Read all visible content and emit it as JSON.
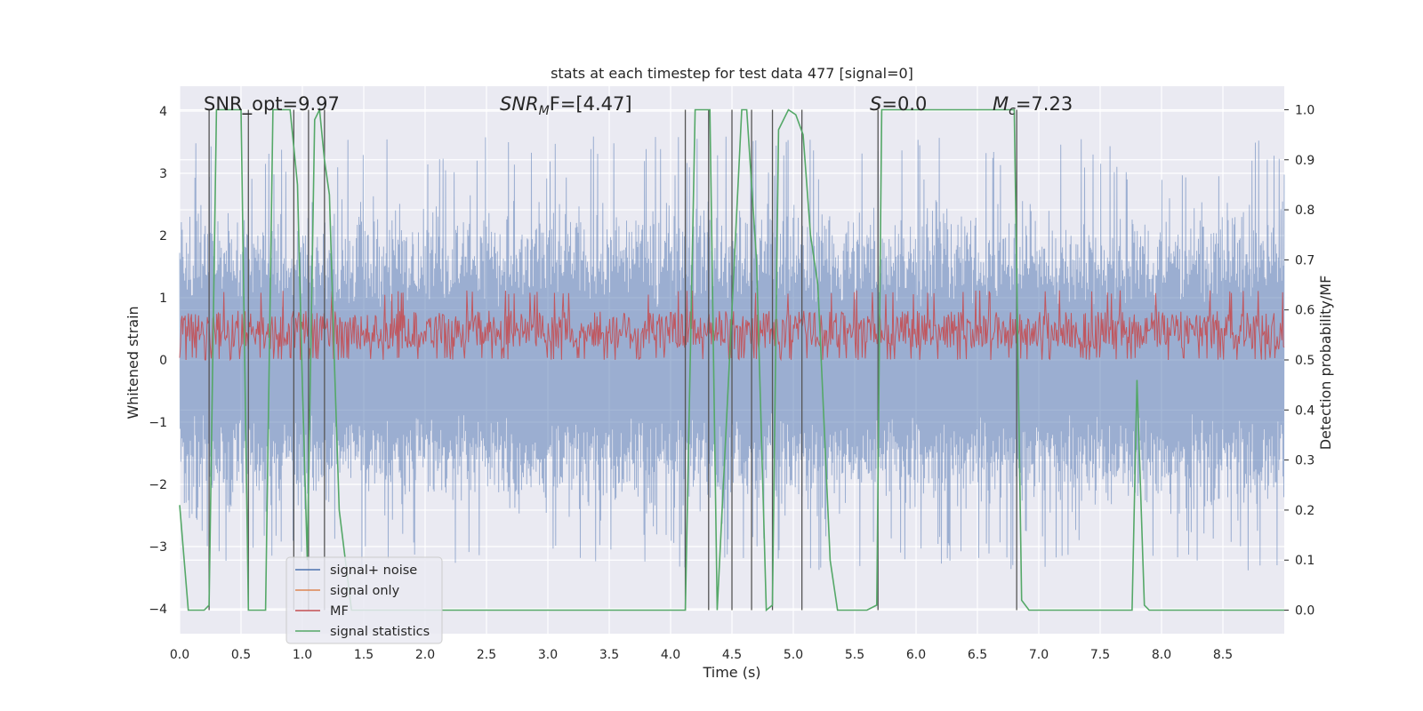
{
  "chart_data": {
    "type": "line",
    "title": "stats at each timestep for test data 477 [signal=0]",
    "xlabel": "Time (s)",
    "ylabel": "Whitened strain",
    "ylabel_right": "Detection probability/MF",
    "xlim": [
      0.0,
      9.0
    ],
    "ylim": [
      -4.4,
      4.4
    ],
    "ylim_right": [
      -0.047,
      1.047
    ],
    "x_ticks": [
      "0.0",
      "0.5",
      "1.0",
      "1.5",
      "2.0",
      "2.5",
      "3.0",
      "3.5",
      "4.0",
      "4.5",
      "5.0",
      "5.5",
      "6.0",
      "6.5",
      "7.0",
      "7.5",
      "8.0",
      "8.5"
    ],
    "y_ticks": [
      "4",
      "3",
      "2",
      "1",
      "0",
      "−1",
      "−2",
      "−3",
      "−4"
    ],
    "y_ticks_right": [
      "1.0",
      "0.9",
      "0.8",
      "0.7",
      "0.6",
      "0.5",
      "0.4",
      "0.3",
      "0.2",
      "0.1",
      "0.0"
    ],
    "grid": true,
    "annotations": {
      "snr_opt": "SNR_opt=9.97",
      "snr_mf_main": "SNR",
      "snr_mf_sub": "M",
      "snr_mf_rest": "F=[4.47]",
      "s_main": "S",
      "s_rest": "=0.0",
      "mc_main": "M",
      "mc_sub": "c",
      "mc_rest": "=7.23"
    },
    "legend": {
      "position": "lower-left",
      "entries": [
        "signal+ noise",
        "signal only",
        "MF",
        "signal statistics"
      ]
    },
    "colors": {
      "background": "#eaeaf2",
      "grid": "#ffffff",
      "noise": "#4c72b0",
      "signal_only": "#dd8452",
      "mf": "#c44e52",
      "statistics": "#55a868",
      "vlines": "#555555"
    },
    "series": [
      {
        "name": "signal+ noise",
        "note": "whitened strain noise, roughly symmetric about 0 with envelope about ±2.5 to ±3.5",
        "amplitude_range": [
          -3.4,
          3.6
        ]
      },
      {
        "name": "MF",
        "note": "matched-filter output on right axis, fluctuating about 0.52",
        "range_right": [
          0.5,
          0.64
        ]
      },
      {
        "name": "signal statistics",
        "x": [
          0.0,
          0.07,
          0.2,
          0.24,
          0.3,
          0.5,
          0.56,
          0.62,
          0.7,
          0.76,
          0.8,
          0.9,
          0.96,
          1.0,
          1.04,
          1.1,
          1.14,
          1.18,
          1.22,
          1.26,
          1.3,
          1.4,
          2.0,
          3.0,
          4.0,
          4.12,
          4.2,
          4.32,
          4.38,
          4.5,
          4.58,
          4.62,
          4.7,
          4.78,
          4.83,
          4.88,
          4.96,
          5.02,
          5.08,
          5.14,
          5.2,
          5.3,
          5.36,
          5.6,
          5.68,
          5.72,
          5.8,
          6.8,
          6.86,
          6.92,
          7.5,
          7.76,
          7.8,
          7.86,
          7.9,
          8.0,
          9.0
        ],
        "values": [
          0.21,
          0.0,
          0.0,
          0.01,
          1.0,
          1.0,
          0.0,
          0.0,
          0.0,
          1.0,
          1.0,
          1.0,
          0.85,
          0.45,
          0.1,
          0.98,
          1.0,
          0.9,
          0.83,
          0.5,
          0.2,
          0.0,
          0.0,
          0.0,
          0.0,
          0.0,
          1.0,
          1.0,
          0.0,
          0.6,
          1.0,
          1.0,
          0.7,
          0.0,
          0.01,
          0.96,
          1.0,
          0.99,
          0.95,
          0.75,
          0.65,
          0.1,
          0.0,
          0.0,
          0.01,
          1.0,
          1.0,
          1.0,
          0.02,
          0.0,
          0.0,
          0.0,
          0.46,
          0.01,
          0.0,
          0.0,
          0.0
        ]
      }
    ],
    "vlines": [
      0.24,
      0.56,
      0.93,
      1.05,
      1.18,
      4.12,
      4.31,
      4.5,
      4.66,
      4.83,
      5.07,
      5.69,
      6.82
    ]
  }
}
